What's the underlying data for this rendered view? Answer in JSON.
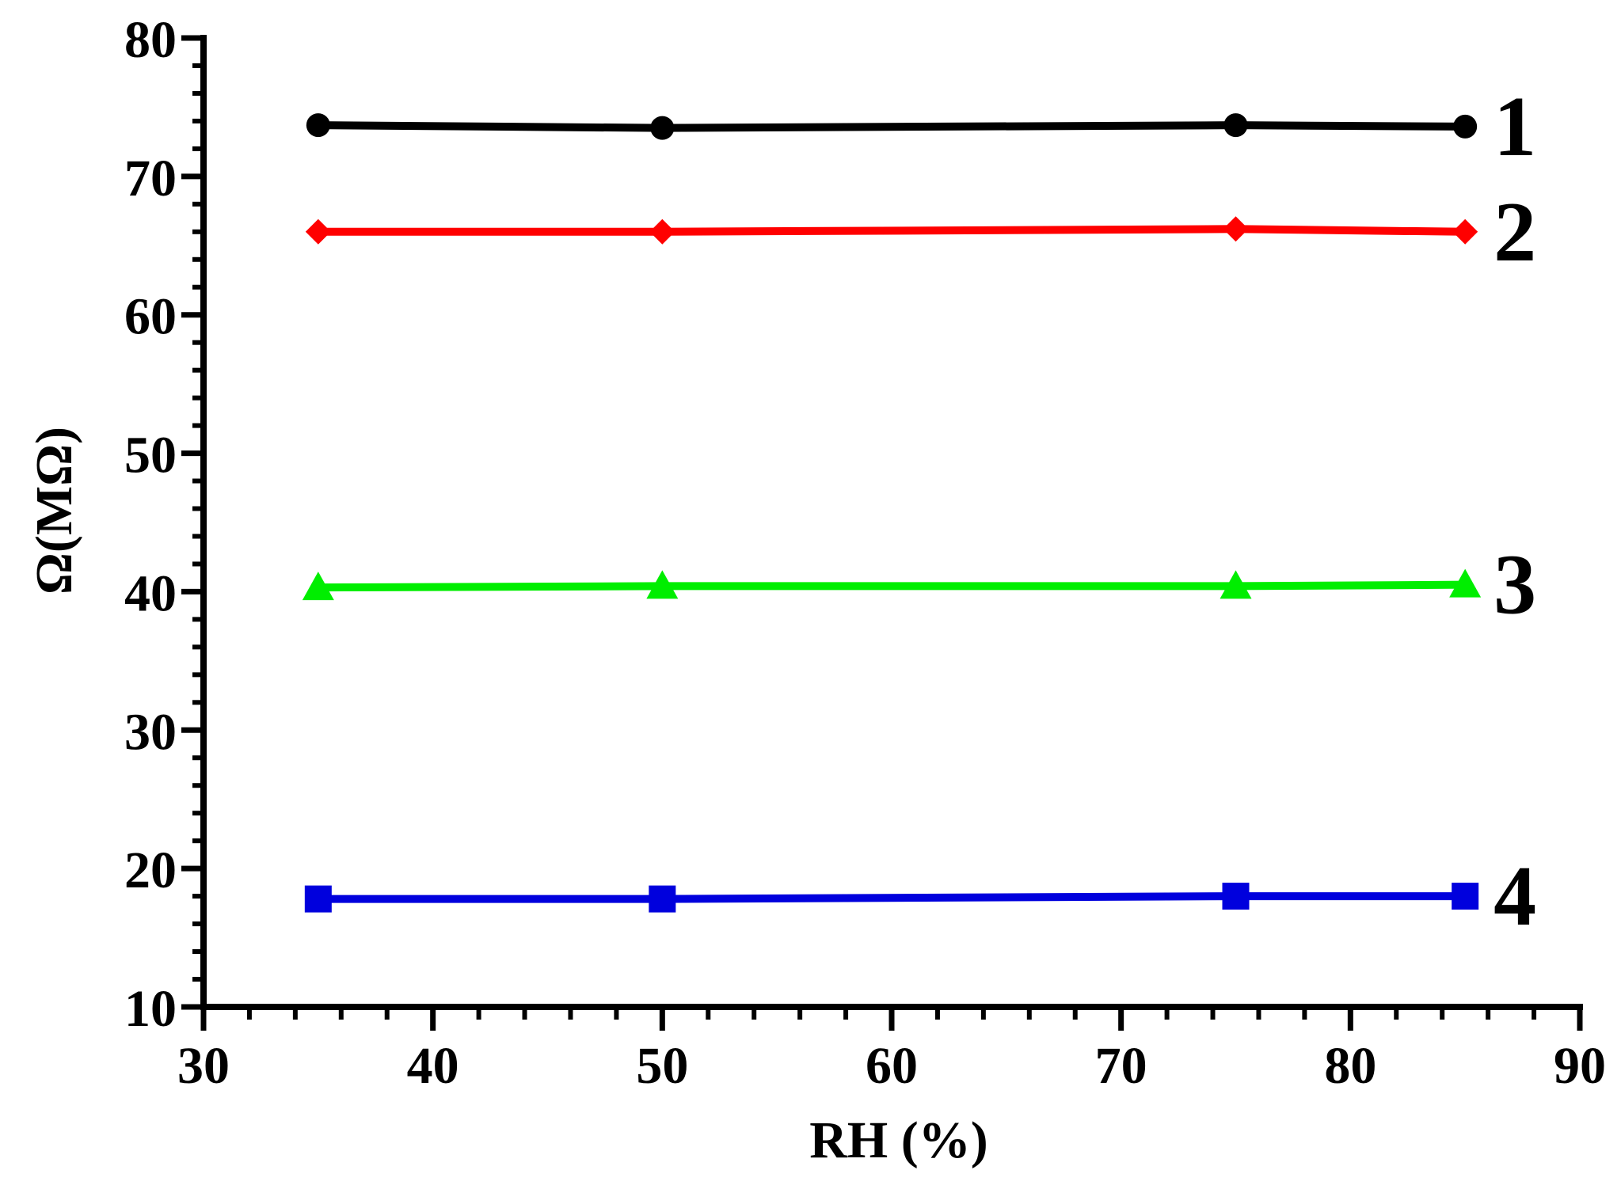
{
  "chart_data": {
    "type": "line",
    "xlabel": "RH (%)",
    "ylabel": "Ω(MΩ)",
    "xlim": [
      30,
      90
    ],
    "ylim": [
      10,
      80
    ],
    "x_ticks": [
      30,
      40,
      50,
      60,
      70,
      80,
      90
    ],
    "y_ticks": [
      10,
      20,
      30,
      40,
      50,
      60,
      70,
      80
    ],
    "grid": false,
    "x": [
      35,
      50,
      75,
      85
    ],
    "series": [
      {
        "name": "1",
        "values": [
          73.7,
          73.5,
          73.7,
          73.6
        ],
        "color": "#000000",
        "marker": "circle"
      },
      {
        "name": "2",
        "values": [
          66.0,
          66.0,
          66.2,
          66.0
        ],
        "color": "#ff0000",
        "marker": "diamond"
      },
      {
        "name": "3",
        "values": [
          40.3,
          40.4,
          40.4,
          40.5
        ],
        "color": "#00ee00",
        "marker": "triangle"
      },
      {
        "name": "4",
        "values": [
          17.8,
          17.8,
          18.0,
          18.0
        ],
        "color": "#0000dd",
        "marker": "square"
      }
    ]
  }
}
